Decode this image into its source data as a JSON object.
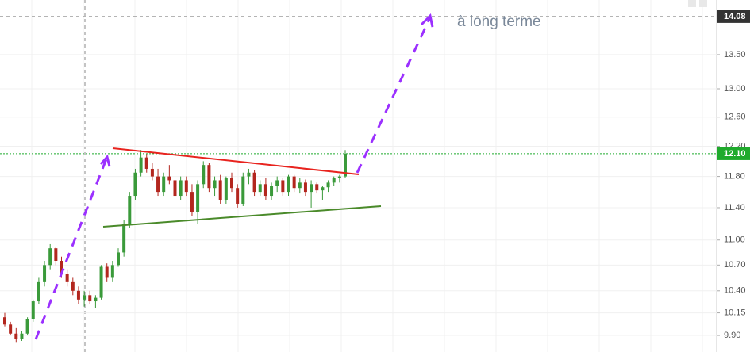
{
  "chart_data": {
    "type": "candlestick",
    "annotation": "à long terme",
    "up_color": "#3a9a3a",
    "down_color": "#b3261e",
    "log_scale": true,
    "grid": true,
    "ylim": [
      9.72,
      14.34
    ],
    "yticks": [
      {
        "value": 9.9,
        "label": "9.90"
      },
      {
        "value": 10.15,
        "label": "10.15"
      },
      {
        "value": 10.4,
        "label": "10.40"
      },
      {
        "value": 10.7,
        "label": "10.70"
      },
      {
        "value": 11,
        "label": "11.00"
      },
      {
        "value": 11.4,
        "label": "11.40"
      },
      {
        "value": 11.8,
        "label": "11.80"
      },
      {
        "value": 12.2,
        "label": "12.20"
      },
      {
        "value": 12.6,
        "label": "12.60"
      },
      {
        "value": 13,
        "label": "13.00"
      },
      {
        "value": 13.5,
        "label": "13.50"
      }
    ],
    "last_price": {
      "value": 12.1,
      "label": "12.10",
      "color": "#1faa2c"
    },
    "crosshair_price": {
      "value": 14.08,
      "label": "14.08"
    },
    "open": [
      10.1,
      10.02,
      9.92,
      9.86,
      9.92,
      10.08,
      10.28,
      10.5,
      10.7,
      10.9,
      10.75,
      10.6,
      10.5,
      10.4,
      10.3,
      10.35,
      10.28,
      10.32,
      10.68,
      10.55,
      10.7,
      10.85,
      11.2,
      11.55,
      11.85,
      12.05,
      11.9,
      11.8,
      11.6,
      11.8,
      11.75,
      11.55,
      11.75,
      11.6,
      11.35,
      11.7,
      11.95,
      11.65,
      11.75,
      11.5,
      11.78,
      11.65,
      11.45,
      11.8,
      11.85,
      11.6,
      11.7,
      11.55,
      11.68,
      11.75,
      11.6,
      11.8,
      11.65,
      11.72,
      11.6,
      11.7,
      11.62,
      11.66,
      11.72,
      11.78,
      11.8
    ],
    "high": [
      10.15,
      10.05,
      9.98,
      9.95,
      10.1,
      10.3,
      10.55,
      10.75,
      10.95,
      10.92,
      10.8,
      10.65,
      10.55,
      10.45,
      10.4,
      10.4,
      10.35,
      10.7,
      10.72,
      10.75,
      10.9,
      11.25,
      11.6,
      11.9,
      12.15,
      12.1,
      11.98,
      11.9,
      11.85,
      11.95,
      11.85,
      11.8,
      11.8,
      11.7,
      11.75,
      12.0,
      11.98,
      11.8,
      11.82,
      11.8,
      11.85,
      11.7,
      11.85,
      11.9,
      11.88,
      11.75,
      11.78,
      11.72,
      11.8,
      11.78,
      11.82,
      11.82,
      11.78,
      11.76,
      11.75,
      11.72,
      11.68,
      11.75,
      11.8,
      11.82,
      12.15
    ],
    "low": [
      10.0,
      9.9,
      9.82,
      9.84,
      9.9,
      10.05,
      10.25,
      10.45,
      10.65,
      10.7,
      10.55,
      10.45,
      10.35,
      10.25,
      10.22,
      10.25,
      10.2,
      10.3,
      10.5,
      10.5,
      10.68,
      10.8,
      11.15,
      11.5,
      11.8,
      11.85,
      11.75,
      11.55,
      11.55,
      11.7,
      11.5,
      11.5,
      11.55,
      11.3,
      11.2,
      11.65,
      11.6,
      11.55,
      11.45,
      11.45,
      11.6,
      11.4,
      11.42,
      11.7,
      11.55,
      11.55,
      11.5,
      11.5,
      11.6,
      11.55,
      11.55,
      11.6,
      11.58,
      11.55,
      11.4,
      11.58,
      11.5,
      11.6,
      11.68,
      11.72,
      11.78
    ],
    "close": [
      10.02,
      9.92,
      9.86,
      9.92,
      10.08,
      10.28,
      10.5,
      10.7,
      10.9,
      10.75,
      10.6,
      10.5,
      10.4,
      10.3,
      10.35,
      10.28,
      10.32,
      10.68,
      10.55,
      10.7,
      10.85,
      11.2,
      11.55,
      11.85,
      12.05,
      11.9,
      11.8,
      11.6,
      11.8,
      11.75,
      11.55,
      11.75,
      11.6,
      11.35,
      11.7,
      11.95,
      11.65,
      11.75,
      11.5,
      11.78,
      11.65,
      11.45,
      11.8,
      11.85,
      11.6,
      11.7,
      11.55,
      11.68,
      11.75,
      11.6,
      11.8,
      11.65,
      11.72,
      11.6,
      11.7,
      11.62,
      11.66,
      11.72,
      11.78,
      11.8,
      12.1
    ]
  }
}
